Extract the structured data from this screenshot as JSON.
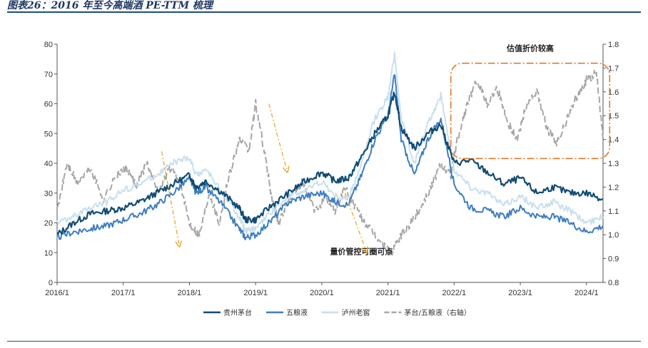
{
  "figure_title": "图表26：2016 年至今高端酒 PE-TTM 梳理",
  "source_note": "",
  "annotations": {
    "box_label": "估值折价较高",
    "bottom_label": "量价管控可圈可点"
  },
  "colors": {
    "moutai": "#0f4c75",
    "wuliangye": "#3d7ec2",
    "luzhou": "#c8dff0",
    "ratio": "#a6a6a6",
    "highlight": "#e07b28",
    "arrow": "#e8a92e"
  },
  "chart_data": {
    "type": "line",
    "title": "",
    "xlabel": "",
    "ylabel": "",
    "x_ticks": [
      "2016/1",
      "2017/1",
      "2018/1",
      "2019/1",
      "2020/1",
      "2021/1",
      "2022/1",
      "2023/1",
      "2024/1"
    ],
    "x_range": [
      "2016/1",
      "2024/4"
    ],
    "ylim_left": [
      0,
      80
    ],
    "y_ticks_left": [
      "0",
      "10",
      "20",
      "30",
      "40",
      "50",
      "60",
      "70",
      "80"
    ],
    "ylim_right": [
      0.8,
      1.8
    ],
    "y_ticks_right": [
      "0.8",
      "0.9",
      "1.0",
      "1.1",
      "1.2",
      "1.3",
      "1.4",
      "1.5",
      "1.6",
      "1.7",
      "1.8"
    ],
    "legend_position": "bottom",
    "series": [
      {
        "name": "贵州茅台",
        "axis": "left",
        "style": "solid",
        "colorKey": "moutai",
        "x": [
          2016.0,
          2016.25,
          2016.5,
          2016.75,
          2017.0,
          2017.25,
          2017.5,
          2017.75,
          2018.0,
          2018.1,
          2018.25,
          2018.5,
          2018.75,
          2018.85,
          2019.0,
          2019.25,
          2019.5,
          2019.75,
          2020.0,
          2020.2,
          2020.4,
          2020.6,
          2020.8,
          2021.0,
          2021.1,
          2021.2,
          2021.4,
          2021.6,
          2021.8,
          2022.0,
          2022.25,
          2022.5,
          2022.75,
          2023.0,
          2023.25,
          2023.5,
          2023.75,
          2024.0,
          2024.25
        ],
        "y": [
          16,
          20,
          23,
          24,
          25,
          27,
          30,
          33,
          36,
          32,
          34,
          30,
          25,
          21,
          21,
          26,
          30,
          34,
          37,
          34,
          35,
          42,
          50,
          56,
          64,
          52,
          45,
          50,
          53,
          40,
          41,
          37,
          33,
          35,
          30,
          32,
          30,
          30,
          28
        ]
      },
      {
        "name": "五粮液",
        "axis": "left",
        "style": "solid",
        "colorKey": "wuliangye",
        "x": [
          2016.0,
          2016.25,
          2016.5,
          2016.75,
          2017.0,
          2017.25,
          2017.5,
          2017.75,
          2018.0,
          2018.1,
          2018.25,
          2018.5,
          2018.75,
          2018.85,
          2019.0,
          2019.25,
          2019.5,
          2019.75,
          2020.0,
          2020.2,
          2020.4,
          2020.6,
          2020.8,
          2021.0,
          2021.1,
          2021.2,
          2021.4,
          2021.6,
          2021.8,
          2022.0,
          2022.25,
          2022.5,
          2022.75,
          2023.0,
          2023.25,
          2023.5,
          2023.75,
          2024.0,
          2024.25
        ],
        "y": [
          15,
          17,
          18,
          19,
          21,
          23,
          26,
          30,
          35,
          30,
          32,
          26,
          18,
          15,
          16,
          21,
          27,
          29,
          30,
          27,
          26,
          36,
          48,
          56,
          70,
          48,
          36,
          48,
          55,
          33,
          25,
          24,
          22,
          25,
          22,
          22,
          20,
          17,
          19
        ]
      },
      {
        "name": "泸州老窖",
        "axis": "left",
        "style": "solid",
        "colorKey": "luzhou",
        "x": [
          2016.0,
          2016.25,
          2016.5,
          2016.75,
          2017.0,
          2017.25,
          2017.5,
          2017.75,
          2018.0,
          2018.1,
          2018.25,
          2018.5,
          2018.75,
          2018.85,
          2019.0,
          2019.25,
          2019.5,
          2019.75,
          2020.0,
          2020.2,
          2020.4,
          2020.6,
          2020.8,
          2021.0,
          2021.1,
          2021.2,
          2021.4,
          2021.6,
          2021.8,
          2022.0,
          2022.25,
          2022.5,
          2022.75,
          2023.0,
          2023.25,
          2023.5,
          2023.75,
          2024.0,
          2024.25
        ],
        "y": [
          20,
          22,
          25,
          27,
          31,
          33,
          36,
          40,
          42,
          36,
          38,
          30,
          22,
          17,
          18,
          24,
          29,
          31,
          34,
          29,
          28,
          40,
          55,
          62,
          77,
          55,
          40,
          53,
          63,
          38,
          32,
          30,
          26,
          29,
          25,
          27,
          24,
          20,
          22
        ]
      },
      {
        "name": "茅台/五粮液（右轴）",
        "axis": "right",
        "style": "dashed",
        "colorKey": "ratio",
        "x": [
          2016.0,
          2016.15,
          2016.3,
          2016.5,
          2016.7,
          2016.9,
          2017.05,
          2017.2,
          2017.35,
          2017.55,
          2017.7,
          2017.85,
          2018.0,
          2018.15,
          2018.3,
          2018.45,
          2018.6,
          2018.75,
          2018.9,
          2019.0,
          2019.1,
          2019.25,
          2019.35,
          2019.5,
          2019.7,
          2019.9,
          2020.05,
          2020.2,
          2020.35,
          2020.5,
          2020.65,
          2020.8,
          2020.95,
          2021.05,
          2021.2,
          2021.35,
          2021.5,
          2021.65,
          2021.8,
          2021.95,
          2022.05,
          2022.2,
          2022.35,
          2022.5,
          2022.65,
          2022.8,
          2022.95,
          2023.1,
          2023.25,
          2023.4,
          2023.55,
          2023.7,
          2023.85,
          2024.0,
          2024.15,
          2024.25
        ],
        "y": [
          1.1,
          1.3,
          1.22,
          1.28,
          1.15,
          1.25,
          1.28,
          1.2,
          1.3,
          1.18,
          1.28,
          1.22,
          1.05,
          1.0,
          1.18,
          1.05,
          1.25,
          1.4,
          1.35,
          1.55,
          1.4,
          1.15,
          1.05,
          1.15,
          1.22,
          1.1,
          1.15,
          1.1,
          1.2,
          1.12,
          1.05,
          1.0,
          0.95,
          0.92,
          1.0,
          1.05,
          1.12,
          1.2,
          1.3,
          1.25,
          1.4,
          1.55,
          1.65,
          1.55,
          1.62,
          1.48,
          1.4,
          1.55,
          1.6,
          1.45,
          1.38,
          1.48,
          1.58,
          1.65,
          1.68,
          1.4
        ]
      }
    ]
  },
  "legend": [
    {
      "label": "贵州茅台",
      "colorKey": "moutai",
      "style": "solid"
    },
    {
      "label": "五粮液",
      "colorKey": "wuliangye",
      "style": "solid"
    },
    {
      "label": "泸州老窖",
      "colorKey": "luzhou",
      "style": "solid"
    },
    {
      "label": "茅台/五粮液（右轴）",
      "colorKey": "ratio",
      "style": "dashed"
    }
  ]
}
